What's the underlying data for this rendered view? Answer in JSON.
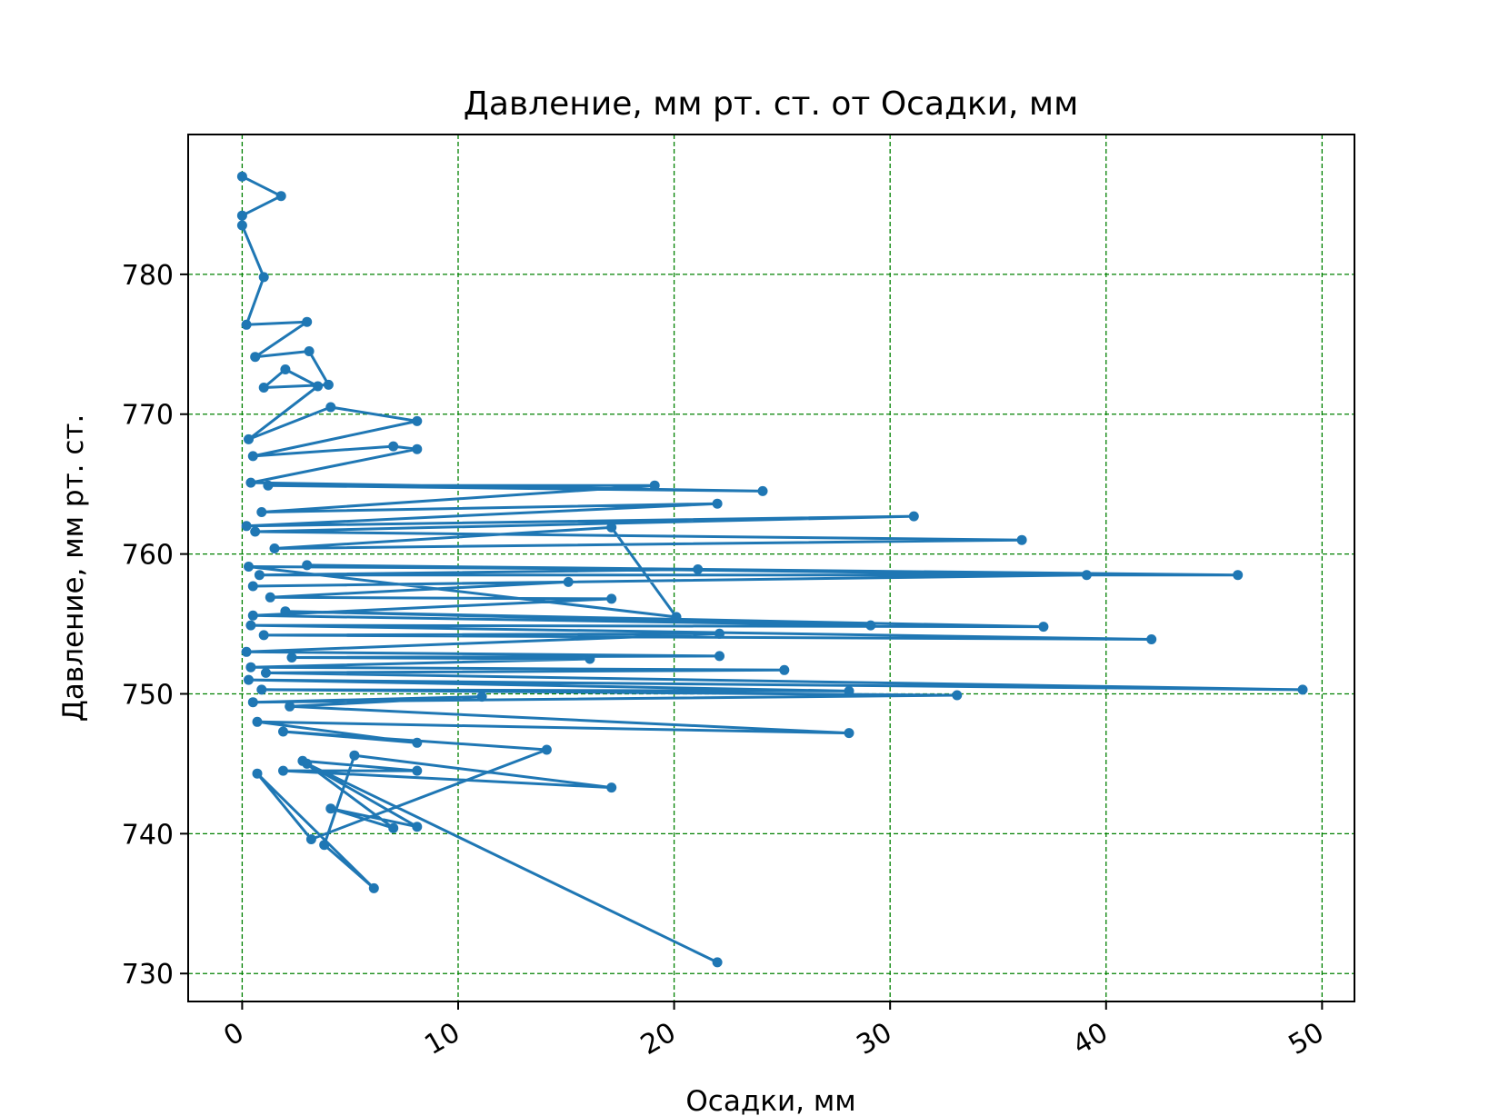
{
  "chart_data": {
    "type": "line",
    "title": "Давление, мм рт. ст. от Осадки, мм",
    "xlabel": "Осадки, мм",
    "ylabel": "Давление, мм рт. ст.",
    "xlim": [
      -2.5,
      51.5
    ],
    "ylim": [
      728,
      790
    ],
    "xticks": [
      0,
      10,
      20,
      30,
      40,
      50
    ],
    "yticks": [
      730,
      740,
      750,
      760,
      770,
      780
    ],
    "grid": true,
    "legend": "none",
    "colors": {
      "series": "#1f77b4",
      "grid": "#008000",
      "axes": "#000000"
    },
    "series": [
      {
        "marker": "circle",
        "points": [
          [
            0.0,
            787.0
          ],
          [
            1.8,
            785.6
          ],
          [
            0.0,
            784.2
          ],
          [
            0.0,
            783.5
          ],
          [
            1.0,
            779.8
          ],
          [
            0.2,
            776.4
          ],
          [
            3.0,
            776.6
          ],
          [
            0.6,
            774.1
          ],
          [
            3.1,
            774.5
          ],
          [
            4.0,
            772.1
          ],
          [
            1.0,
            771.9
          ],
          [
            2.0,
            773.2
          ],
          [
            3.5,
            772.0
          ],
          [
            0.3,
            768.2
          ],
          [
            4.1,
            770.5
          ],
          [
            8.1,
            769.5
          ],
          [
            0.5,
            767.0
          ],
          [
            7.0,
            767.7
          ],
          [
            8.1,
            767.5
          ],
          [
            0.4,
            765.1
          ],
          [
            24.1,
            764.5
          ],
          [
            1.2,
            764.9
          ],
          [
            19.1,
            764.9
          ],
          [
            0.9,
            763.0
          ],
          [
            22.0,
            763.6
          ],
          [
            0.2,
            762.0
          ],
          [
            31.1,
            762.7
          ],
          [
            0.6,
            761.6
          ],
          [
            36.1,
            761.0
          ],
          [
            1.5,
            760.4
          ],
          [
            17.1,
            761.9
          ],
          [
            20.1,
            755.5
          ],
          [
            0.3,
            759.1
          ],
          [
            21.1,
            758.9
          ],
          [
            0.8,
            758.5
          ],
          [
            46.1,
            758.5
          ],
          [
            3.0,
            759.2
          ],
          [
            39.1,
            758.5
          ],
          [
            0.5,
            757.7
          ],
          [
            15.1,
            758.0
          ],
          [
            1.3,
            756.9
          ],
          [
            17.1,
            756.8
          ],
          [
            0.5,
            755.6
          ],
          [
            29.1,
            754.9
          ],
          [
            2.0,
            755.9
          ],
          [
            37.1,
            754.8
          ],
          [
            0.4,
            754.9
          ],
          [
            42.1,
            753.9
          ],
          [
            1.0,
            754.2
          ],
          [
            22.1,
            754.3
          ],
          [
            0.2,
            753.0
          ],
          [
            22.1,
            752.7
          ],
          [
            2.3,
            752.6
          ],
          [
            16.1,
            752.5
          ],
          [
            0.4,
            751.9
          ],
          [
            25.1,
            751.7
          ],
          [
            1.1,
            751.5
          ],
          [
            49.1,
            750.3
          ],
          [
            0.3,
            751.0
          ],
          [
            28.1,
            750.2
          ],
          [
            0.9,
            750.3
          ],
          [
            33.1,
            749.9
          ],
          [
            0.5,
            749.4
          ],
          [
            11.1,
            749.8
          ],
          [
            2.2,
            749.1
          ],
          [
            28.1,
            747.2
          ],
          [
            0.7,
            748.0
          ],
          [
            8.1,
            746.5
          ],
          [
            1.9,
            747.3
          ],
          [
            14.1,
            746.0
          ],
          [
            3.2,
            739.6
          ],
          [
            0.7,
            744.3
          ],
          [
            6.1,
            736.1
          ],
          [
            3.8,
            739.2
          ],
          [
            5.2,
            745.6
          ],
          [
            17.1,
            743.3
          ],
          [
            1.9,
            744.5
          ],
          [
            8.1,
            744.5
          ],
          [
            2.8,
            745.2
          ],
          [
            7.0,
            740.4
          ],
          [
            4.1,
            741.8
          ],
          [
            8.1,
            740.5
          ],
          [
            3.0,
            745.0
          ],
          [
            22.0,
            730.8
          ]
        ]
      }
    ]
  }
}
